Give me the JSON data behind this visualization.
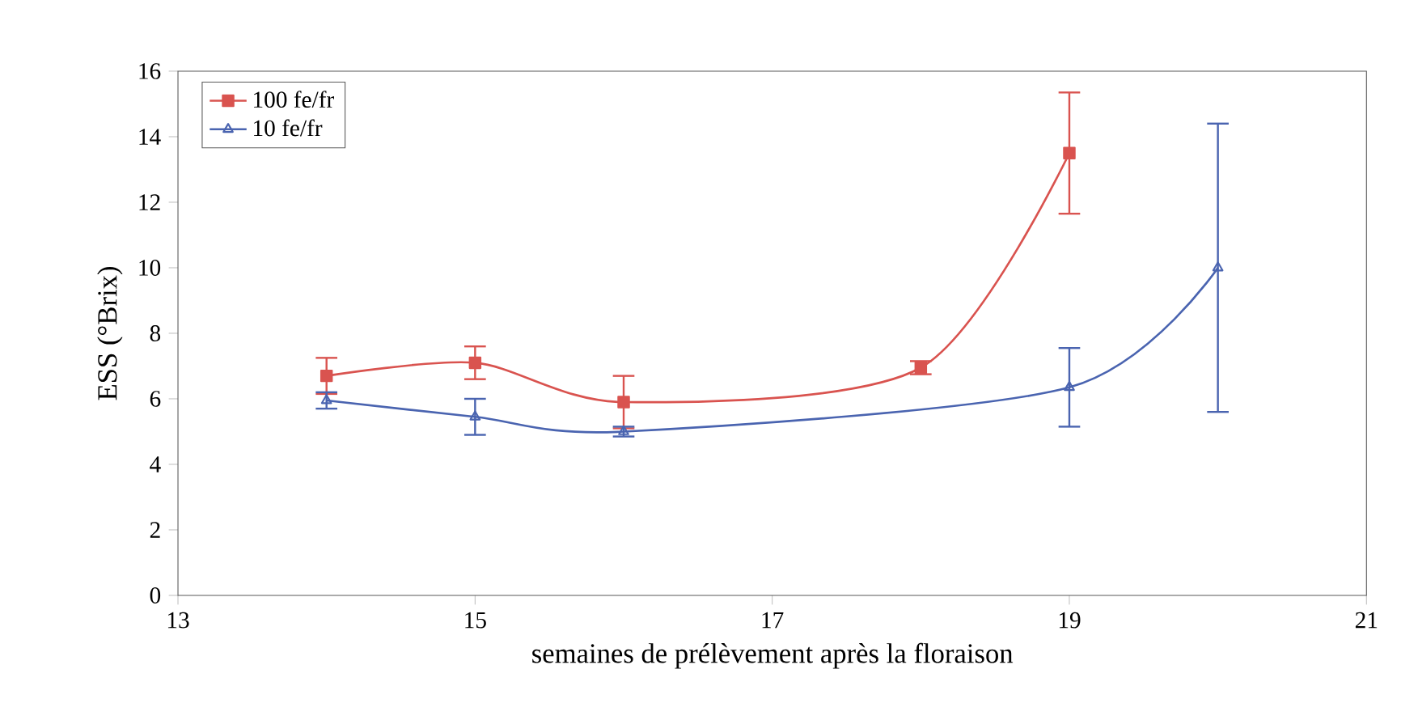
{
  "chart_data": {
    "type": "line",
    "xlabel": "semaines de prélèvement après la floraison",
    "ylabel": "ESS (°Brix)",
    "xlim": [
      13,
      21
    ],
    "xticks": [
      13,
      15,
      17,
      19,
      21
    ],
    "ylim": [
      0,
      16
    ],
    "yticks": [
      0,
      2,
      4,
      6,
      8,
      10,
      12,
      14,
      16
    ],
    "grid": false,
    "legend": "top left",
    "line_style": "solid",
    "series": [
      {
        "name": "100 fe/fr",
        "color": "#d9534f",
        "marker": "square",
        "x": [
          14,
          15,
          16,
          18,
          19
        ],
        "values": [
          6.7,
          7.1,
          5.9,
          6.95,
          13.5
        ],
        "errors": [
          0.55,
          0.5,
          0.8,
          0.2,
          1.85
        ]
      },
      {
        "name": "10 fe/fr",
        "color": "#4a64b0",
        "marker": "triangle",
        "x": [
          14,
          15,
          16,
          19,
          20
        ],
        "values": [
          5.95,
          5.45,
          5.0,
          6.35,
          10.0
        ],
        "errors": [
          0.25,
          0.55,
          0.15,
          1.2,
          4.4
        ]
      }
    ]
  }
}
